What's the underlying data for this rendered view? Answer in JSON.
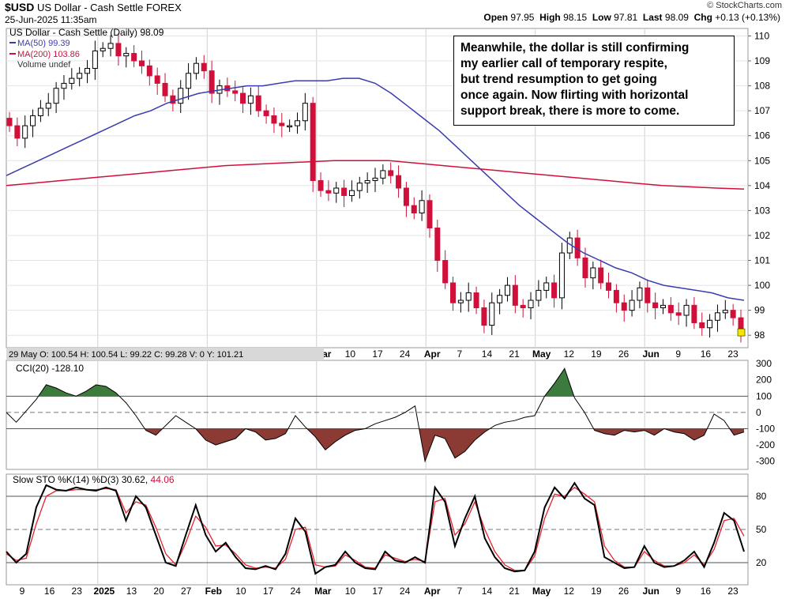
{
  "header": {
    "symbol": "$USD",
    "name": "US Dollar - Cash Settle FOREX",
    "date": "25-Jun-2025 11:35am",
    "copyright": "© StockCharts.com",
    "open_label": "Open",
    "open": "97.95",
    "high_label": "High",
    "high": "98.15",
    "low_label": "Low",
    "low": "97.81",
    "last_label": "Last",
    "last": "98.09",
    "chg_label": "Chg",
    "chg": "+0.13 (+0.13%)"
  },
  "legend": {
    "main": "US Dollar - Cash Settle (Daily) 98.09",
    "ma50": "MA(50) 99.39",
    "ma200": "MA(200) 103.86",
    "volume": "Volume undef"
  },
  "hover": "29 May O: 100.54  H: 100.54  L: 99.22  C: 99.28  V: 0  Y: 101.21",
  "annotation": [
    "Meanwhile, the dollar is still confirming",
    "my earlier call of temporary respite,",
    "but trend resumption to get going",
    "once again. Now flirting with horizontal",
    "support break, there is more to come."
  ],
  "cci_label": "CCI(20) -128.10",
  "sto_label": "Slow STO %K(14) %D(3) 30.62,",
  "sto_label_d": "44.06",
  "colors": {
    "up": "#000000",
    "down": "#d0103a",
    "ma50": "#3a3cb0",
    "ma200": "#d0103a",
    "cci_pos": "#3d7a3d",
    "cci_neg": "#8b3a34"
  },
  "chart_data": [
    {
      "type": "candlestick",
      "title": "US Dollar - Cash Settle (Daily)",
      "ylim": [
        97.5,
        110.3
      ],
      "yticks": [
        98,
        99,
        100,
        101,
        102,
        103,
        104,
        105,
        106,
        107,
        108,
        109,
        110
      ],
      "x_labels": [
        "9",
        "16",
        "23",
        "2025",
        "13",
        "20",
        "27",
        "Feb",
        "10",
        "17",
        "24",
        "Mar",
        "10",
        "17",
        "24",
        "Apr",
        "7",
        "14",
        "21",
        "May",
        "12",
        "19",
        "26",
        "Jun",
        "9",
        "16",
        "23"
      ],
      "close": [
        106.4,
        105.9,
        106.4,
        106.8,
        107.1,
        107.3,
        107.9,
        108.1,
        108.3,
        108.5,
        108.7,
        109.4,
        109.5,
        109.7,
        109.2,
        109.3,
        109.0,
        108.8,
        108.4,
        108.1,
        107.6,
        107.3,
        107.9,
        108.5,
        108.9,
        108.6,
        107.7,
        108.0,
        107.8,
        107.7,
        107.3,
        107.6,
        107.0,
        106.8,
        106.5,
        106.4,
        106.4,
        106.6,
        107.3,
        104.2,
        103.8,
        103.7,
        103.9,
        103.6,
        103.8,
        104.1,
        104.2,
        104.3,
        104.6,
        104.4,
        103.9,
        103.2,
        102.9,
        103.4,
        102.3,
        101.0,
        100.1,
        99.3,
        99.4,
        99.7,
        99.1,
        98.4,
        99.3,
        99.6,
        100.0,
        99.2,
        99.1,
        99.4,
        99.8,
        100.1,
        99.5,
        101.3,
        101.9,
        101.1,
        100.3,
        100.7,
        100.1,
        99.8,
        99.3,
        99.0,
        99.4,
        99.9,
        99.3,
        99.1,
        99.2,
        98.9,
        98.8,
        99.2,
        98.5,
        98.3,
        98.6,
        98.9,
        99.0,
        98.7,
        98.1
      ],
      "ma50": [
        104.4,
        104.7,
        105.0,
        105.3,
        105.6,
        105.9,
        106.2,
        106.5,
        106.8,
        107.0,
        107.3,
        107.5,
        107.7,
        107.8,
        107.9,
        108.0,
        108.0,
        108.1,
        108.2,
        108.2,
        108.2,
        108.3,
        108.3,
        108.1,
        107.7,
        107.2,
        106.7,
        106.2,
        105.6,
        105.0,
        104.4,
        103.8,
        103.2,
        102.7,
        102.2,
        101.7,
        101.3,
        101.0,
        100.7,
        100.5,
        100.2,
        100.0,
        99.9,
        99.8,
        99.7,
        99.5,
        99.4
      ],
      "ma200": [
        104.0,
        104.1,
        104.2,
        104.3,
        104.4,
        104.5,
        104.6,
        104.7,
        104.8,
        104.85,
        104.9,
        104.95,
        105.0,
        105.0,
        105.0,
        104.9,
        104.8,
        104.7,
        104.6,
        104.5,
        104.4,
        104.3,
        104.2,
        104.1,
        104.0,
        103.95,
        103.9,
        103.86
      ]
    },
    {
      "type": "line",
      "title": "CCI(20)",
      "ylim": [
        -350,
        320
      ],
      "yticks": [
        300,
        200,
        100,
        0,
        -100,
        -200,
        -300
      ],
      "values": [
        0,
        -60,
        10,
        80,
        170,
        150,
        120,
        100,
        130,
        170,
        160,
        120,
        60,
        -20,
        -110,
        -140,
        -80,
        -20,
        -60,
        -100,
        -170,
        -200,
        -180,
        -160,
        -100,
        -120,
        -170,
        -160,
        -130,
        -20,
        -90,
        -150,
        -230,
        -180,
        -140,
        -110,
        -100,
        -70,
        -50,
        -30,
        0,
        40,
        -300,
        -140,
        -160,
        -280,
        -240,
        -170,
        -120,
        -80,
        -60,
        -50,
        -30,
        -20,
        100,
        180,
        270,
        90,
        0,
        -110,
        -130,
        -140,
        -110,
        -120,
        -110,
        -140,
        -100,
        -120,
        -130,
        -170,
        -140,
        -10,
        -50,
        -140,
        -120
      ]
    },
    {
      "type": "line",
      "title": "Slow STO %K(14) %D(3)",
      "ylim": [
        0,
        100
      ],
      "yticks": [
        80,
        50,
        20
      ],
      "series": [
        {
          "name": "%K(14)",
          "values": [
            30,
            20,
            28,
            70,
            90,
            86,
            85,
            88,
            86,
            85,
            88,
            85,
            58,
            80,
            70,
            45,
            20,
            17,
            45,
            72,
            45,
            30,
            38,
            25,
            15,
            14,
            17,
            14,
            28,
            60,
            48,
            10,
            16,
            18,
            30,
            20,
            15,
            14,
            30,
            22,
            20,
            25,
            20,
            88,
            75,
            35,
            60,
            80,
            42,
            25,
            15,
            12,
            13,
            30,
            70,
            88,
            78,
            92,
            78,
            72,
            25,
            20,
            15,
            16,
            35,
            20,
            16,
            17,
            22,
            30,
            16,
            38,
            65,
            58,
            30
          ]
        },
        {
          "name": "%D(3)",
          "values": [
            28,
            22,
            24,
            55,
            80,
            85,
            85,
            86,
            86,
            86,
            87,
            86,
            65,
            75,
            72,
            52,
            28,
            18,
            38,
            62,
            52,
            35,
            36,
            28,
            18,
            15,
            16,
            15,
            23,
            50,
            52,
            18,
            16,
            17,
            27,
            22,
            16,
            15,
            27,
            24,
            21,
            23,
            21,
            75,
            78,
            45,
            55,
            75,
            50,
            30,
            18,
            13,
            13,
            26,
            60,
            82,
            80,
            88,
            82,
            75,
            35,
            22,
            16,
            16,
            30,
            22,
            17,
            17,
            20,
            27,
            18,
            32,
            58,
            60,
            44
          ]
        }
      ]
    }
  ]
}
